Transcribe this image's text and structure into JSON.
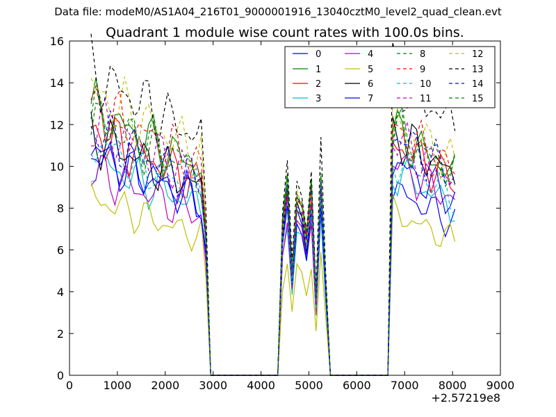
{
  "figure": {
    "supertitle": "Data file: modeM0/AS1A04_216T01_9000001916_13040cztM0_level2_quad_clean.evt"
  },
  "chart_data": {
    "type": "line",
    "title": "Quadrant 1 module wise count rates with 100.0s bins.",
    "xlabel": "",
    "ylabel": "",
    "x_offset_label": "+2.57219e8",
    "xlim": [
      0,
      9000
    ],
    "ylim": [
      0,
      16
    ],
    "xticks": [
      0,
      1000,
      2000,
      3000,
      4000,
      5000,
      6000,
      7000,
      8000,
      9000
    ],
    "yticks": [
      0,
      2,
      4,
      6,
      8,
      10,
      12,
      14,
      16
    ],
    "grid": false,
    "legend_position": "top-right",
    "segments": [
      {
        "start": 450,
        "end": 2750
      },
      {
        "start": 4450,
        "end": 5350
      },
      {
        "start": 6750,
        "end": 8050
      }
    ],
    "series": [
      {
        "name": "0",
        "color": "#0000ff",
        "dash": "solid",
        "levels": [
          10.8,
          8.3,
          8.9
        ],
        "spike": 9.0
      },
      {
        "name": "1",
        "color": "#008000",
        "dash": "solid",
        "levels": [
          12.7,
          9.3,
          11.7
        ],
        "spike": 9.4
      },
      {
        "name": "2",
        "color": "#ff0000",
        "dash": "solid",
        "levels": [
          11.7,
          8.6,
          11.2
        ],
        "spike": 8.9
      },
      {
        "name": "3",
        "color": "#00bfbf",
        "dash": "solid",
        "levels": [
          10.3,
          7.3,
          9.8
        ],
        "spike": 7.7
      },
      {
        "name": "4",
        "color": "#bf00bf",
        "dash": "solid",
        "levels": [
          9.8,
          7.6,
          10.2
        ],
        "spike": 8.1
      },
      {
        "name": "5",
        "color": "#bfbf00",
        "dash": "solid",
        "levels": [
          8.5,
          5.4,
          7.8
        ],
        "spike": 5.9
      },
      {
        "name": "6",
        "color": "#000000",
        "dash": "solid",
        "levels": [
          11.5,
          8.6,
          11.6
        ],
        "spike": 9.1
      },
      {
        "name": "7",
        "color": "#0000ff",
        "dash": "solid",
        "levels": [
          10.6,
          7.8,
          10.2
        ],
        "spike": 8.1
      },
      {
        "name": "8",
        "color": "#008000",
        "dash": "dashed",
        "levels": [
          12.6,
          9.2,
          11.7
        ],
        "spike": 9.6
      },
      {
        "name": "9",
        "color": "#ff0000",
        "dash": "dashed",
        "levels": [
          12.9,
          9.0,
          11.9
        ],
        "spike": 9.3
      },
      {
        "name": "10",
        "color": "#00bfbf",
        "dash": "dashed",
        "levels": [
          11.2,
          8.2,
          10.4
        ],
        "spike": 8.6
      },
      {
        "name": "11",
        "color": "#bf00bf",
        "dash": "dashed",
        "levels": [
          12.1,
          8.8,
          11.4
        ],
        "spike": 9.1
      },
      {
        "name": "12",
        "color": "#bfbf00",
        "dash": "dashed",
        "levels": [
          13.6,
          9.1,
          12.3
        ],
        "spike": 9.5
      },
      {
        "name": "13",
        "color": "#000000",
        "dash": "dashed",
        "levels": [
          14.5,
          9.9,
          14.5
        ],
        "spike": 11.4
      },
      {
        "name": "14",
        "color": "#0000ff",
        "dash": "dashed",
        "levels": [
          11.8,
          8.9,
          11.6
        ],
        "spike": 9.3
      },
      {
        "name": "15",
        "color": "#008000",
        "dash": "dashed",
        "levels": [
          12.3,
          9.2,
          11.9
        ],
        "spike": 9.7
      }
    ]
  }
}
